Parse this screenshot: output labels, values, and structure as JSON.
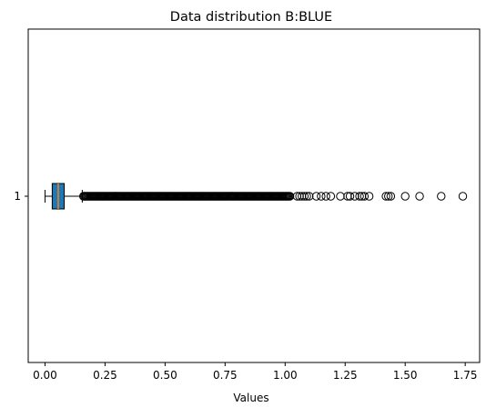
{
  "chart_data": {
    "type": "boxplot",
    "orientation": "horizontal",
    "title": "Data distribution B:BLUE",
    "xlabel": "Values",
    "ylabel": "",
    "xlim": [
      -0.07,
      1.81
    ],
    "x_ticks": [
      0.0,
      0.25,
      0.5,
      0.75,
      1.0,
      1.25,
      1.5,
      1.75
    ],
    "x_tick_labels": [
      "0.00",
      "0.25",
      "0.50",
      "0.75",
      "1.00",
      "1.25",
      "1.50",
      "1.75"
    ],
    "y_tick_labels": [
      "1"
    ],
    "grid": false,
    "series": [
      {
        "category": "1",
        "whisker_low": 0.0,
        "q1": 0.03,
        "median": 0.055,
        "q3": 0.08,
        "whisker_high": 0.155,
        "box_color": "#1f77b4",
        "median_color": "#ff7f0e",
        "dense_outlier_range": [
          0.16,
          1.02
        ],
        "outliers": [
          1.05,
          1.06,
          1.07,
          1.08,
          1.09,
          1.1,
          1.13,
          1.15,
          1.17,
          1.19,
          1.23,
          1.26,
          1.27,
          1.29,
          1.31,
          1.32,
          1.33,
          1.35,
          1.42,
          1.43,
          1.44,
          1.5,
          1.56,
          1.65,
          1.74
        ]
      }
    ]
  }
}
